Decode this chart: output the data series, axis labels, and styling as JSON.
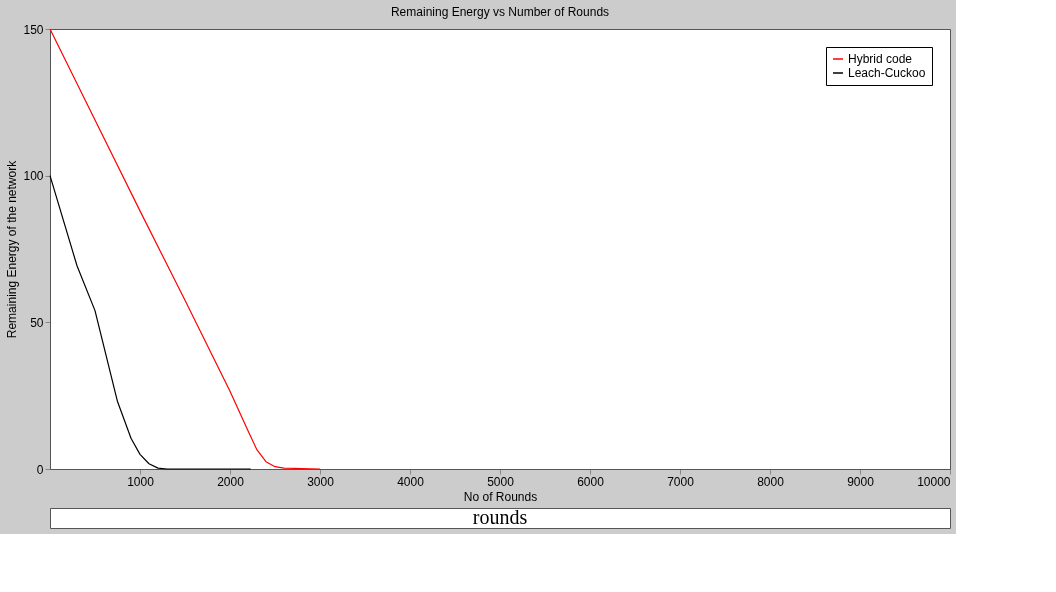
{
  "chart_data": {
    "type": "line",
    "title": "Remaining Energy vs Number of Rounds",
    "xlabel": "No of Rounds",
    "ylabel": "Remaining Energy of the network",
    "series": [
      {
        "name": "Hybrid code",
        "color": "#ff0000",
        "x": [
          0,
          500,
          1000,
          1500,
          2000,
          2200,
          2300,
          2400,
          2500,
          2600,
          3000
        ],
        "values": [
          150,
          119,
          88,
          57.5,
          26.5,
          13,
          6.5,
          2.5,
          0.8,
          0.3,
          0
        ]
      },
      {
        "name": "Leach-Cuckoo",
        "color": "#000000",
        "x": [
          0,
          300,
          500,
          750,
          900,
          1000,
          1100,
          1200,
          1300,
          2230
        ],
        "values": [
          100,
          69.3,
          54,
          23,
          10.5,
          5,
          1.8,
          0.3,
          0,
          0
        ]
      }
    ],
    "xlim": [
      0,
      10000
    ],
    "xticks": [
      1000,
      2000,
      3000,
      4000,
      5000,
      6000,
      7000,
      8000,
      9000,
      10000
    ],
    "ylim": [
      0,
      150
    ],
    "yticks": [
      0,
      50,
      100,
      150
    ],
    "grid": false,
    "legend": "top right",
    "marker": "none",
    "line_style": "solid",
    "annotations": [
      "rounds"
    ]
  }
}
